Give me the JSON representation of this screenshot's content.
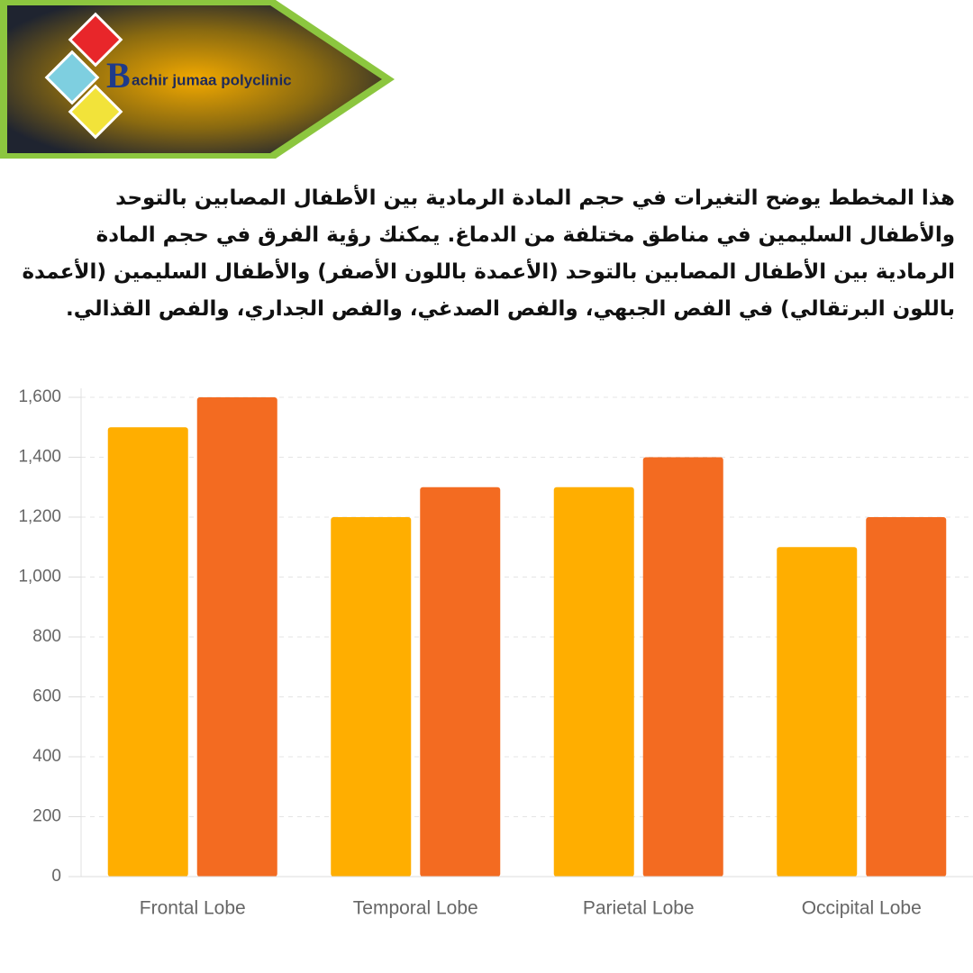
{
  "header": {
    "logo_letter": "B",
    "logo_text": "achir jumaa polyclinic"
  },
  "description": "هذا المخطط يوضح التغيرات في حجم المادة الرمادية بين الأطفال المصابين بالتوحد والأطفال السليمين في مناطق مختلفة من الدماغ. يمكنك رؤية الفرق في حجم المادة الرمادية بين الأطفال المصابين بالتوحد (الأعمدة باللون الأصفر) والأطفال السليمين (الأعمدة باللون البرتقالي) في الفص الجبهي، والفص الصدغي، والفص الجداري، والفص القذالي.",
  "chart_data": {
    "type": "bar",
    "categories": [
      "Frontal Lobe",
      "Temporal Lobe",
      "Parietal Lobe",
      "Occipital Lobe"
    ],
    "series": [
      {
        "color": "#ffae00",
        "values": [
          1500,
          1200,
          1300,
          1100
        ]
      },
      {
        "color": "#f36b21",
        "values": [
          1600,
          1300,
          1400,
          1200
        ]
      }
    ],
    "ylim": [
      0,
      1600
    ],
    "yticks": [
      0,
      200,
      400,
      600,
      800,
      {
        "value": 1000,
        "label": "1,000"
      },
      {
        "value": 1200,
        "label": "1,200"
      },
      {
        "value": 1400,
        "label": "1,400"
      },
      {
        "value": 1600,
        "label": "1,600"
      }
    ],
    "grid": true
  }
}
